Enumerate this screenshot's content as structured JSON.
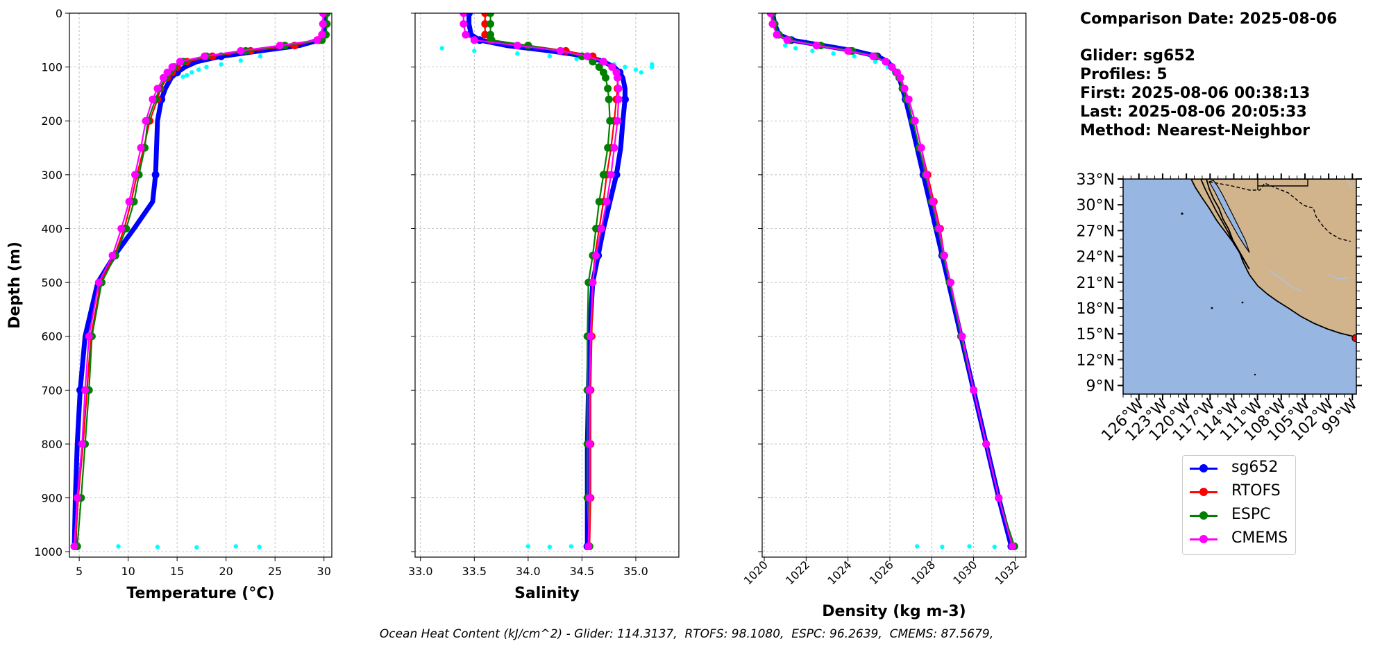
{
  "colors": {
    "glider": "#0000ff",
    "glider_raw": "#00ffff",
    "rtofs": "#ff0000",
    "espc": "#008000",
    "cmems": "#ff00ff",
    "ocean": "#97b6e1",
    "land": "#d2b48c",
    "grid": "#b0b0b0"
  },
  "info": {
    "comparison_date": "Comparison Date: 2025-08-06",
    "glider": "Glider: sg652",
    "profiles": "Profiles: 5",
    "first": "First: 2025-08-06 00:38:13",
    "last": "Last: 2025-08-06 20:05:33",
    "method": "Method: Nearest-Neighbor"
  },
  "legend": [
    {
      "label": "sg652",
      "color": "#0000ff"
    },
    {
      "label": "RTOFS",
      "color": "#ff0000"
    },
    {
      "label": "ESPC",
      "color": "#008000"
    },
    {
      "label": "CMEMS",
      "color": "#ff00ff"
    }
  ],
  "ohc": {
    "prefix": "Ocean Heat Content (kJ/cm^2) - ",
    "items": [
      "Glider: 114.3137",
      "RTOFS: 98.1080",
      "ESPC: 96.2639",
      "CMEMS: 87.5679"
    ]
  },
  "chart_data": [
    {
      "type": "line",
      "title": "",
      "xlabel": "Temperature (°C)",
      "ylabel": "Depth (m)",
      "xlim": [
        4,
        30.8
      ],
      "ylim": [
        1010,
        0
      ],
      "xticks": [
        5,
        10,
        15,
        20,
        25,
        30
      ],
      "yticks": [
        0,
        100,
        200,
        300,
        400,
        500,
        600,
        700,
        800,
        900,
        1000
      ],
      "grid": true,
      "depth": [
        0,
        20,
        40,
        50,
        60,
        70,
        80,
        90,
        100,
        110,
        120,
        140,
        160,
        200,
        250,
        300,
        350,
        400,
        450,
        500,
        600,
        700,
        800,
        900,
        990
      ],
      "series": [
        {
          "name": "sg652",
          "values": [
            30.2,
            30.1,
            29.9,
            29.5,
            27.5,
            23.5,
            19.5,
            17.0,
            15.8,
            15.0,
            14.4,
            13.8,
            13.4,
            13.0,
            12.9,
            12.8,
            12.5,
            10.6,
            8.6,
            6.9,
            5.6,
            5.1,
            4.8,
            4.6,
            4.5
          ]
        },
        {
          "name": "RTOFS",
          "values": [
            30.0,
            29.9,
            29.8,
            29.4,
            27.0,
            22.5,
            18.6,
            16.0,
            15.0,
            14.5,
            14.0,
            13.3,
            13.0,
            12.2,
            11.6,
            10.9,
            10.3,
            9.6,
            8.6,
            7.2,
            6.2,
            5.8,
            5.4,
            4.9,
            4.6
          ]
        },
        {
          "name": "ESPC",
          "values": [
            30.3,
            30.3,
            30.2,
            29.8,
            26.0,
            22.0,
            18.0,
            15.6,
            14.7,
            14.2,
            13.8,
            13.2,
            12.8,
            12.0,
            11.7,
            11.1,
            10.6,
            9.8,
            8.7,
            7.3,
            6.3,
            6.0,
            5.6,
            5.2,
            4.8
          ]
        },
        {
          "name": "CMEMS",
          "values": [
            29.9,
            29.9,
            29.8,
            29.3,
            25.5,
            21.5,
            17.8,
            15.3,
            14.5,
            14.0,
            13.6,
            13.0,
            12.5,
            11.8,
            11.3,
            10.7,
            10.1,
            9.3,
            8.4,
            7.0,
            6.0,
            5.6,
            5.3,
            4.8,
            4.5
          ]
        }
      ],
      "scatter_series": [
        {
          "name": "glider raw",
          "depth": [
            80,
            88,
            95,
            100,
            105,
            110,
            115,
            118,
            990,
            991,
            992,
            990,
            991
          ],
          "values": [
            23.5,
            21.5,
            19.5,
            18.0,
            17.2,
            16.5,
            16.0,
            15.6,
            9.0,
            13.0,
            17.0,
            21.0,
            23.4
          ]
        }
      ],
      "annotations": []
    },
    {
      "type": "line",
      "title": "",
      "xlabel": "Salinity",
      "ylabel": "",
      "xlim": [
        32.95,
        35.4
      ],
      "ylim": [
        1010,
        0
      ],
      "xticks": [
        33.0,
        33.5,
        34.0,
        34.5,
        35.0
      ],
      "xtick_labels": [
        "33.0",
        "33.5",
        "34.0",
        "34.5",
        "35.0"
      ],
      "yticks": [
        0,
        100,
        200,
        300,
        400,
        500,
        600,
        700,
        800,
        900,
        1000
      ],
      "grid": true,
      "depth": [
        0,
        20,
        40,
        50,
        60,
        70,
        80,
        90,
        100,
        110,
        120,
        140,
        160,
        200,
        250,
        300,
        350,
        400,
        450,
        500,
        600,
        700,
        800,
        900,
        990
      ],
      "series": [
        {
          "name": "sg652",
          "values": [
            33.45,
            33.45,
            33.47,
            33.55,
            33.8,
            34.2,
            34.55,
            34.7,
            34.8,
            34.85,
            34.88,
            34.9,
            34.9,
            34.88,
            34.86,
            34.82,
            34.76,
            34.7,
            34.65,
            34.6,
            34.57,
            34.56,
            34.55,
            34.55,
            34.55
          ]
        },
        {
          "name": "RTOFS",
          "values": [
            33.6,
            33.6,
            33.6,
            33.65,
            34.0,
            34.35,
            34.6,
            34.7,
            34.78,
            34.82,
            34.83,
            34.83,
            34.82,
            34.8,
            34.77,
            34.73,
            34.7,
            34.66,
            34.62,
            34.6,
            34.59,
            34.58,
            34.58,
            34.58,
            34.57
          ]
        },
        {
          "name": "ESPC",
          "values": [
            33.65,
            33.65,
            33.65,
            33.66,
            34.0,
            34.3,
            34.5,
            34.6,
            34.66,
            34.7,
            34.72,
            34.74,
            34.75,
            34.76,
            34.74,
            34.7,
            34.66,
            34.63,
            34.6,
            34.56,
            34.55,
            34.55,
            34.55,
            34.55,
            34.57
          ]
        },
        {
          "name": "CMEMS",
          "values": [
            33.4,
            33.4,
            33.42,
            33.5,
            33.9,
            34.3,
            34.55,
            34.7,
            34.78,
            34.82,
            34.83,
            34.84,
            34.84,
            34.83,
            34.8,
            34.77,
            34.73,
            34.68,
            34.63,
            34.6,
            34.58,
            34.57,
            34.57,
            34.57,
            34.56
          ]
        }
      ],
      "scatter_series": [
        {
          "name": "glider raw",
          "depth": [
            65,
            70,
            75,
            80,
            85,
            90,
            95,
            100,
            105,
            110,
            100,
            95,
            990,
            991,
            990
          ],
          "values": [
            33.2,
            33.5,
            33.9,
            34.2,
            34.45,
            34.6,
            34.8,
            34.9,
            35.0,
            35.05,
            35.15,
            35.15,
            34.0,
            34.2,
            34.4
          ]
        }
      ],
      "annotations": []
    },
    {
      "type": "line",
      "title": "",
      "xlabel": "Density (kg m-3)",
      "ylabel": "",
      "xlim": [
        1019.9,
        1032.5
      ],
      "ylim": [
        1010,
        0
      ],
      "xticks": [
        1020,
        1022,
        1024,
        1026,
        1028,
        1030,
        1032
      ],
      "yticks": [
        0,
        100,
        200,
        300,
        400,
        500,
        600,
        700,
        800,
        900,
        1000
      ],
      "grid": true,
      "depth": [
        0,
        20,
        40,
        50,
        60,
        70,
        80,
        90,
        100,
        110,
        120,
        140,
        160,
        200,
        250,
        300,
        350,
        400,
        450,
        500,
        600,
        700,
        800,
        900,
        990
      ],
      "series": [
        {
          "name": "sg652",
          "values": [
            1020.4,
            1020.5,
            1020.7,
            1021.3,
            1022.8,
            1024.3,
            1025.4,
            1025.9,
            1026.1,
            1026.3,
            1026.45,
            1026.6,
            1026.75,
            1027.0,
            1027.3,
            1027.6,
            1027.9,
            1028.2,
            1028.5,
            1028.8,
            1029.4,
            1030.0,
            1030.6,
            1031.2,
            1031.8
          ]
        },
        {
          "name": "RTOFS",
          "values": [
            1020.3,
            1020.4,
            1020.6,
            1021.1,
            1022.5,
            1024.1,
            1025.3,
            1025.8,
            1026.1,
            1026.3,
            1026.5,
            1026.7,
            1026.9,
            1027.2,
            1027.5,
            1027.8,
            1028.1,
            1028.4,
            1028.6,
            1028.9,
            1029.4,
            1030.0,
            1030.6,
            1031.2,
            1031.9
          ]
        },
        {
          "name": "ESPC",
          "values": [
            1020.4,
            1020.5,
            1020.7,
            1021.2,
            1022.7,
            1024.2,
            1025.3,
            1025.8,
            1026.1,
            1026.3,
            1026.45,
            1026.6,
            1026.8,
            1027.1,
            1027.4,
            1027.7,
            1028.0,
            1028.3,
            1028.55,
            1028.85,
            1029.4,
            1030.0,
            1030.6,
            1031.2,
            1031.95
          ]
        },
        {
          "name": "CMEMS",
          "values": [
            1020.3,
            1020.4,
            1020.6,
            1021.1,
            1022.5,
            1024.0,
            1025.2,
            1025.8,
            1026.1,
            1026.35,
            1026.5,
            1026.7,
            1026.9,
            1027.2,
            1027.5,
            1027.75,
            1028.05,
            1028.35,
            1028.6,
            1028.9,
            1029.45,
            1030.0,
            1030.6,
            1031.2,
            1031.85
          ]
        }
      ],
      "scatter_series": [
        {
          "name": "glider raw",
          "depth": [
            60,
            65,
            70,
            75,
            80,
            90,
            100,
            110,
            990,
            991,
            990,
            991
          ],
          "values": [
            1021.0,
            1021.5,
            1022.3,
            1023.3,
            1024.3,
            1025.3,
            1025.9,
            1026.2,
            1027.3,
            1028.5,
            1029.8,
            1031.0
          ]
        }
      ],
      "annotations": []
    },
    {
      "type": "map",
      "title": "",
      "lat_ticks": [
        "33°N",
        "30°N",
        "27°N",
        "24°N",
        "21°N",
        "18°N",
        "15°N",
        "12°N",
        "9°N"
      ],
      "lat_values": [
        33,
        30,
        27,
        24,
        21,
        18,
        15,
        12,
        9
      ],
      "lon_ticks": [
        "126°W",
        "123°W",
        "120°W",
        "117°W",
        "114°W",
        "111°W",
        "108°W",
        "105°W",
        "102°W",
        "99°W"
      ],
      "lon_values": [
        -126,
        -123,
        -120,
        -117,
        -114,
        -111,
        -108,
        -105,
        -102,
        -99
      ],
      "extent": [
        -128,
        -98.5,
        8,
        33
      ],
      "glider_position": {
        "lon": -98.6,
        "lat": 14.5
      }
    }
  ]
}
